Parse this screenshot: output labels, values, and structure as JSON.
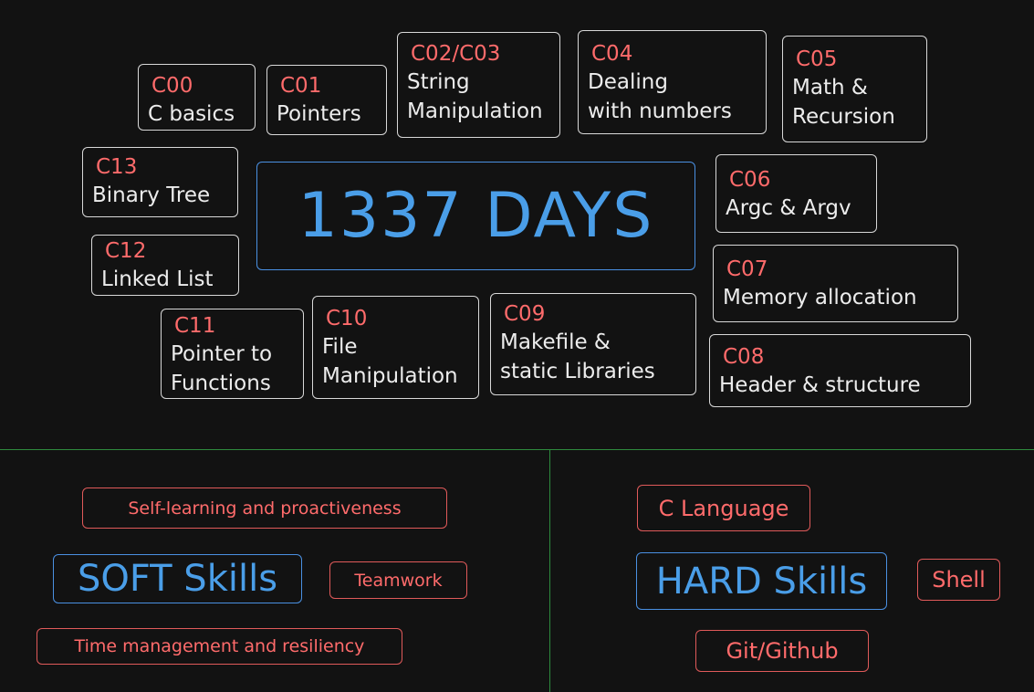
{
  "main_title": "1337 DAYS",
  "modules": [
    {
      "code": "C00",
      "title": [
        "C basics"
      ]
    },
    {
      "code": "C01",
      "title": [
        "Pointers"
      ]
    },
    {
      "code": "C02/C03",
      "title": [
        "String",
        "Manipulation"
      ]
    },
    {
      "code": "C04",
      "title": [
        "Dealing",
        "with numbers"
      ]
    },
    {
      "code": "C05",
      "title": [
        "Math &",
        "Recursion"
      ]
    },
    {
      "code": "C06",
      "title": [
        "Argc & Argv"
      ]
    },
    {
      "code": "C07",
      "title": [
        "Memory allocation"
      ]
    },
    {
      "code": "C08",
      "title": [
        "Header & structure"
      ]
    },
    {
      "code": "C09",
      "title": [
        "Makefile &",
        "static Libraries"
      ]
    },
    {
      "code": "C10",
      "title": [
        "File",
        "Manipulation"
      ]
    },
    {
      "code": "C11",
      "title": [
        "Pointer to",
        "Functions"
      ]
    },
    {
      "code": "C12",
      "title": [
        "Linked List"
      ]
    },
    {
      "code": "C13",
      "title": [
        "Binary Tree"
      ]
    }
  ],
  "soft": {
    "heading": "SOFT Skills",
    "items": [
      "Self-learning and proactiveness",
      "Teamwork",
      "Time management and resiliency"
    ]
  },
  "hard": {
    "heading": "HARD Skills",
    "items": [
      "C Language",
      "Shell",
      "Git/Github"
    ]
  },
  "colors": {
    "background": "#121212",
    "module_code": "#ff6b6b",
    "module_text": "#ececec",
    "accent_blue": "#4a9ee8",
    "divider_green": "#2e8b3e"
  }
}
